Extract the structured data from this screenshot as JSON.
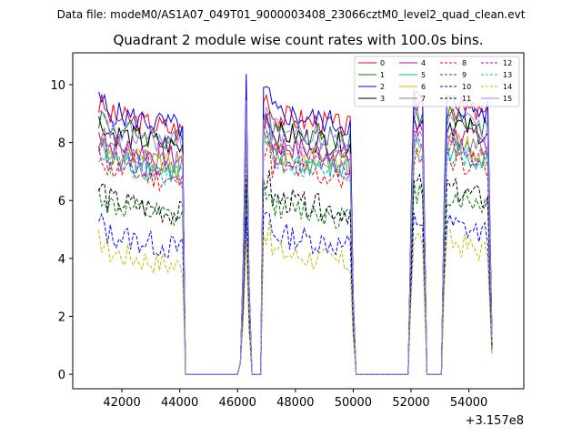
{
  "chart_data": {
    "type": "line",
    "suptitle": "Data file: modeM0/AS1A07_049T01_9000003408_23066cztM0_level2_quad_clean.evt",
    "title": "Quadrant 2 module wise count rates with 100.0s bins.",
    "xlabel": "",
    "ylabel": "",
    "x_offset_label": "+3.157e8",
    "xlim": [
      40300,
      55900
    ],
    "ylim": [
      -0.5,
      11.1
    ],
    "x_ticks": [
      42000,
      44000,
      46000,
      48000,
      50000,
      52000,
      54000
    ],
    "x_tick_labels": [
      "42000",
      "44000",
      "46000",
      "48000",
      "50000",
      "52000",
      "54000"
    ],
    "y_ticks": [
      0,
      2,
      4,
      6,
      8,
      10
    ],
    "y_tick_labels": [
      "0",
      "2",
      "4",
      "6",
      "8",
      "10"
    ],
    "segments": [
      {
        "start": 41200,
        "end": 44100
      },
      {
        "spike_start": 46100,
        "peak": 46300,
        "spike_end": 46500
      },
      {
        "start": 46900,
        "end": 49900
      },
      {
        "start": 52000,
        "end": 52450
      },
      {
        "start": 53150,
        "end": 54800
      }
    ],
    "legend_position": "top-right",
    "series": [
      {
        "name": "0",
        "color": "#ff0000",
        "style": "solid",
        "level": 9.0
      },
      {
        "name": "1",
        "color": "#008000",
        "style": "solid",
        "level": 8.6
      },
      {
        "name": "2",
        "color": "#0000ff",
        "style": "solid",
        "level": 9.1
      },
      {
        "name": "3",
        "color": "#000000",
        "style": "solid",
        "level": 8.4
      },
      {
        "name": "4",
        "color": "#bf00bf",
        "style": "solid",
        "level": 8.0
      },
      {
        "name": "5",
        "color": "#00bfbf",
        "style": "solid",
        "level": 7.5
      },
      {
        "name": "6",
        "color": "#bfbf00",
        "style": "solid",
        "level": 7.7
      },
      {
        "name": "7",
        "color": "#808080",
        "style": "solid",
        "level": 7.9
      },
      {
        "name": "8",
        "color": "#ff0000",
        "style": "dashed",
        "level": 7.2
      },
      {
        "name": "9",
        "color": "#008000",
        "style": "dashed",
        "level": 5.9
      },
      {
        "name": "10",
        "color": "#0000ff",
        "style": "dashed",
        "level": 4.9
      },
      {
        "name": "11",
        "color": "#000000",
        "style": "dashed",
        "level": 6.1
      },
      {
        "name": "12",
        "color": "#bf00bf",
        "style": "dashed",
        "level": 7.6
      },
      {
        "name": "13",
        "color": "#00bfbf",
        "style": "dashed",
        "level": 7.4
      },
      {
        "name": "14",
        "color": "#bfbf00",
        "style": "dashed",
        "level": 4.3
      },
      {
        "name": "15",
        "color": "#9f7fff",
        "style": "solid",
        "level": 8.5
      }
    ]
  }
}
